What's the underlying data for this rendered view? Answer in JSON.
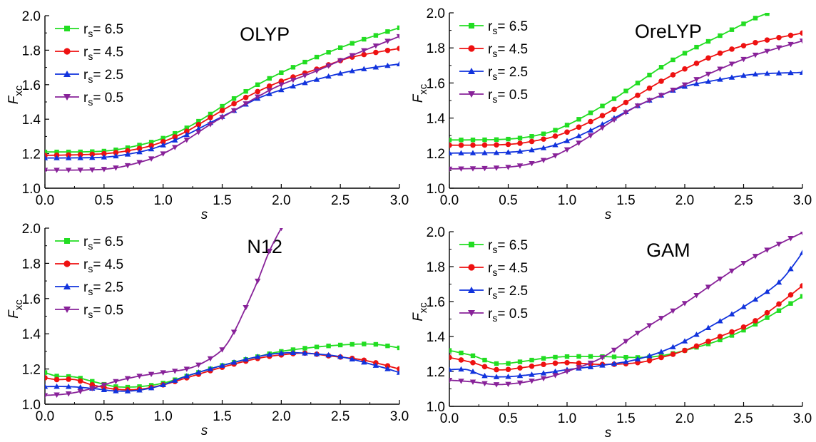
{
  "chart_data": [
    {
      "type": "line",
      "title": "OLYP",
      "xlabel": "s",
      "ylabel": "F",
      "ylabel_sub": "xc",
      "xlim": [
        0,
        3
      ],
      "ylim": [
        1.0,
        2.0
      ],
      "xticks": [
        "0.0",
        "0.5",
        "1.0",
        "1.5",
        "2.0",
        "2.5",
        "3.0"
      ],
      "yticks": [
        "1.0",
        "1.2",
        "1.4",
        "1.6",
        "1.8",
        "2.0"
      ],
      "legend": "top-left",
      "series": [
        {
          "name": "6.5",
          "color": "#22dd22",
          "marker": "square",
          "points": [
            [
              0,
              1.21
            ],
            [
              0.5,
              1.215
            ],
            [
              0.8,
              1.25
            ],
            [
              1.0,
              1.29
            ],
            [
              1.2,
              1.35
            ],
            [
              1.4,
              1.43
            ],
            [
              1.6,
              1.52
            ],
            [
              1.8,
              1.6
            ],
            [
              2.0,
              1.67
            ],
            [
              2.3,
              1.76
            ],
            [
              2.6,
              1.84
            ],
            [
              3.0,
              1.93
            ]
          ]
        },
        {
          "name": "4.5",
          "color": "#ee1111",
          "marker": "circle",
          "points": [
            [
              0,
              1.19
            ],
            [
              0.5,
              1.2
            ],
            [
              0.8,
              1.23
            ],
            [
              1.0,
              1.27
            ],
            [
              1.2,
              1.33
            ],
            [
              1.4,
              1.41
            ],
            [
              1.6,
              1.49
            ],
            [
              1.8,
              1.56
            ],
            [
              2.0,
              1.62
            ],
            [
              2.3,
              1.69
            ],
            [
              2.6,
              1.76
            ],
            [
              3.0,
              1.81
            ]
          ]
        },
        {
          "name": "2.5",
          "color": "#1133dd",
          "marker": "triangle-up",
          "points": [
            [
              0,
              1.175
            ],
            [
              0.5,
              1.18
            ],
            [
              0.8,
              1.21
            ],
            [
              1.0,
              1.25
            ],
            [
              1.2,
              1.31
            ],
            [
              1.4,
              1.38
            ],
            [
              1.6,
              1.45
            ],
            [
              1.8,
              1.52
            ],
            [
              2.0,
              1.57
            ],
            [
              2.3,
              1.63
            ],
            [
              2.6,
              1.68
            ],
            [
              3.0,
              1.72
            ]
          ]
        },
        {
          "name": "0.5",
          "color": "#882299",
          "marker": "triangle-down",
          "points": [
            [
              0,
              1.105
            ],
            [
              0.5,
              1.11
            ],
            [
              0.8,
              1.15
            ],
            [
              1.0,
              1.2
            ],
            [
              1.2,
              1.28
            ],
            [
              1.4,
              1.37
            ],
            [
              1.6,
              1.45
            ],
            [
              1.8,
              1.53
            ],
            [
              2.0,
              1.6
            ],
            [
              2.3,
              1.68
            ],
            [
              2.6,
              1.77
            ],
            [
              3.0,
              1.88
            ]
          ]
        }
      ]
    },
    {
      "type": "line",
      "title": "OreLYP",
      "xlabel": "s",
      "ylabel": "F",
      "ylabel_sub": "xc",
      "xlim": [
        0,
        3
      ],
      "ylim": [
        1.0,
        2.0
      ],
      "xticks": [
        "0.0",
        "0.5",
        "1.0",
        "1.5",
        "2.0",
        "2.5",
        "3.0"
      ],
      "yticks": [
        "1.0",
        "1.2",
        "1.4",
        "1.6",
        "1.8",
        "2.0"
      ],
      "legend": "top-left",
      "series": [
        {
          "name": "6.5",
          "color": "#22dd22",
          "marker": "square",
          "points": [
            [
              0,
              1.275
            ],
            [
              0.5,
              1.28
            ],
            [
              0.8,
              1.31
            ],
            [
              1.0,
              1.36
            ],
            [
              1.2,
              1.43
            ],
            [
              1.4,
              1.51
            ],
            [
              1.6,
              1.6
            ],
            [
              1.8,
              1.69
            ],
            [
              2.0,
              1.77
            ],
            [
              2.3,
              1.87
            ],
            [
              2.6,
              1.97
            ],
            [
              2.72,
              2.0
            ]
          ]
        },
        {
          "name": "4.5",
          "color": "#ee1111",
          "marker": "circle",
          "points": [
            [
              0,
              1.245
            ],
            [
              0.5,
              1.25
            ],
            [
              0.8,
              1.28
            ],
            [
              1.0,
              1.32
            ],
            [
              1.2,
              1.38
            ],
            [
              1.4,
              1.45
            ],
            [
              1.6,
              1.53
            ],
            [
              1.8,
              1.61
            ],
            [
              2.0,
              1.68
            ],
            [
              2.3,
              1.77
            ],
            [
              2.6,
              1.83
            ],
            [
              3.0,
              1.885
            ]
          ]
        },
        {
          "name": "2.5",
          "color": "#1133dd",
          "marker": "triangle-up",
          "points": [
            [
              0,
              1.2
            ],
            [
              0.5,
              1.205
            ],
            [
              0.8,
              1.23
            ],
            [
              1.0,
              1.27
            ],
            [
              1.2,
              1.33
            ],
            [
              1.4,
              1.4
            ],
            [
              1.6,
              1.47
            ],
            [
              1.8,
              1.53
            ],
            [
              2.0,
              1.58
            ],
            [
              2.3,
              1.62
            ],
            [
              2.6,
              1.65
            ],
            [
              3.0,
              1.66
            ]
          ]
        },
        {
          "name": "0.5",
          "color": "#882299",
          "marker": "triangle-down",
          "points": [
            [
              0,
              1.11
            ],
            [
              0.5,
              1.12
            ],
            [
              0.8,
              1.16
            ],
            [
              1.0,
              1.22
            ],
            [
              1.2,
              1.3
            ],
            [
              1.4,
              1.39
            ],
            [
              1.6,
              1.47
            ],
            [
              1.8,
              1.53
            ],
            [
              2.0,
              1.59
            ],
            [
              2.3,
              1.68
            ],
            [
              2.6,
              1.76
            ],
            [
              3.0,
              1.84
            ]
          ]
        }
      ]
    },
    {
      "type": "line",
      "title": "N12",
      "xlabel": "s",
      "ylabel": "F",
      "ylabel_sub": "xc",
      "xlim": [
        0,
        3
      ],
      "ylim": [
        1.0,
        2.0
      ],
      "xticks": [
        "0.0",
        "0.5",
        "1.0",
        "1.5",
        "2.0",
        "2.5",
        "3.0"
      ],
      "yticks": [
        "1.0",
        "1.2",
        "1.4",
        "1.6",
        "1.8",
        "2.0"
      ],
      "legend": "top-left",
      "series": [
        {
          "name": "6.5",
          "color": "#22dd22",
          "marker": "square",
          "points": [
            [
              0,
              1.18
            ],
            [
              0.1,
              1.16
            ],
            [
              0.25,
              1.155
            ],
            [
              0.4,
              1.13
            ],
            [
              0.6,
              1.1
            ],
            [
              0.8,
              1.1
            ],
            [
              1.0,
              1.12
            ],
            [
              1.2,
              1.16
            ],
            [
              1.5,
              1.22
            ],
            [
              1.8,
              1.27
            ],
            [
              2.0,
              1.3
            ],
            [
              2.3,
              1.325
            ],
            [
              2.6,
              1.34
            ],
            [
              2.8,
              1.34
            ],
            [
              3.0,
              1.32
            ]
          ]
        },
        {
          "name": "4.5",
          "color": "#ee1111",
          "marker": "circle",
          "points": [
            [
              0,
              1.15
            ],
            [
              0.1,
              1.14
            ],
            [
              0.25,
              1.14
            ],
            [
              0.4,
              1.11
            ],
            [
              0.6,
              1.085
            ],
            [
              0.8,
              1.085
            ],
            [
              1.0,
              1.11
            ],
            [
              1.2,
              1.15
            ],
            [
              1.5,
              1.21
            ],
            [
              1.8,
              1.26
            ],
            [
              2.0,
              1.28
            ],
            [
              2.2,
              1.29
            ],
            [
              2.4,
              1.275
            ],
            [
              2.7,
              1.25
            ],
            [
              3.0,
              1.2
            ]
          ]
        },
        {
          "name": "2.5",
          "color": "#1133dd",
          "marker": "triangle-up",
          "points": [
            [
              0,
              1.1
            ],
            [
              0.2,
              1.1
            ],
            [
              0.4,
              1.09
            ],
            [
              0.6,
              1.075
            ],
            [
              0.8,
              1.08
            ],
            [
              1.0,
              1.11
            ],
            [
              1.2,
              1.16
            ],
            [
              1.5,
              1.22
            ],
            [
              1.8,
              1.27
            ],
            [
              2.0,
              1.29
            ],
            [
              2.2,
              1.29
            ],
            [
              2.5,
              1.27
            ],
            [
              2.8,
              1.22
            ],
            [
              3.0,
              1.18
            ]
          ]
        },
        {
          "name": "0.5",
          "color": "#882299",
          "marker": "triangle-down",
          "points": [
            [
              0,
              1.05
            ],
            [
              0.2,
              1.06
            ],
            [
              0.4,
              1.09
            ],
            [
              0.6,
              1.13
            ],
            [
              0.8,
              1.16
            ],
            [
              1.0,
              1.18
            ],
            [
              1.2,
              1.2
            ],
            [
              1.35,
              1.24
            ],
            [
              1.5,
              1.31
            ],
            [
              1.6,
              1.41
            ],
            [
              1.7,
              1.55
            ],
            [
              1.8,
              1.7
            ],
            [
              1.9,
              1.87
            ],
            [
              2.0,
              2.0
            ]
          ]
        }
      ]
    },
    {
      "type": "line",
      "title": "GAM",
      "xlabel": "s",
      "ylabel": "F",
      "ylabel_sub": "xc",
      "xlim": [
        0,
        3
      ],
      "ylim": [
        1.0,
        2.0
      ],
      "xticks": [
        "0.0",
        "0.5",
        "1.0",
        "1.5",
        "2.0",
        "2.5",
        "3.0"
      ],
      "yticks": [
        "1.0",
        "1.2",
        "1.4",
        "1.6",
        "1.8",
        "2.0"
      ],
      "legend": "top-left",
      "series": [
        {
          "name": "6.5",
          "color": "#22dd22",
          "marker": "square",
          "points": [
            [
              0,
              1.32
            ],
            [
              0.2,
              1.29
            ],
            [
              0.4,
              1.245
            ],
            [
              0.6,
              1.255
            ],
            [
              0.8,
              1.275
            ],
            [
              1.0,
              1.285
            ],
            [
              1.3,
              1.285
            ],
            [
              1.6,
              1.28
            ],
            [
              1.8,
              1.29
            ],
            [
              2.0,
              1.32
            ],
            [
              2.3,
              1.38
            ],
            [
              2.6,
              1.47
            ],
            [
              3.0,
              1.63
            ]
          ]
        },
        {
          "name": "4.5",
          "color": "#ee1111",
          "marker": "circle",
          "points": [
            [
              0,
              1.28
            ],
            [
              0.2,
              1.25
            ],
            [
              0.4,
              1.21
            ],
            [
              0.6,
              1.22
            ],
            [
              0.8,
              1.24
            ],
            [
              1.0,
              1.25
            ],
            [
              1.3,
              1.24
            ],
            [
              1.6,
              1.25
            ],
            [
              1.8,
              1.28
            ],
            [
              2.0,
              1.32
            ],
            [
              2.3,
              1.4
            ],
            [
              2.6,
              1.49
            ],
            [
              3.0,
              1.69
            ]
          ]
        },
        {
          "name": "2.5",
          "color": "#1133dd",
          "marker": "triangle-up",
          "points": [
            [
              0,
              1.21
            ],
            [
              0.15,
              1.21
            ],
            [
              0.3,
              1.175
            ],
            [
              0.5,
              1.17
            ],
            [
              0.8,
              1.19
            ],
            [
              1.0,
              1.21
            ],
            [
              1.3,
              1.235
            ],
            [
              1.6,
              1.27
            ],
            [
              1.9,
              1.34
            ],
            [
              2.2,
              1.45
            ],
            [
              2.5,
              1.57
            ],
            [
              2.8,
              1.71
            ],
            [
              3.0,
              1.88
            ]
          ]
        },
        {
          "name": "0.5",
          "color": "#882299",
          "marker": "triangle-down",
          "points": [
            [
              0,
              1.15
            ],
            [
              0.2,
              1.14
            ],
            [
              0.4,
              1.125
            ],
            [
              0.6,
              1.135
            ],
            [
              0.8,
              1.16
            ],
            [
              1.0,
              1.2
            ],
            [
              1.3,
              1.28
            ],
            [
              1.6,
              1.42
            ],
            [
              2.0,
              1.59
            ],
            [
              2.3,
              1.73
            ],
            [
              2.6,
              1.86
            ],
            [
              3.0,
              1.995
            ]
          ]
        }
      ]
    }
  ]
}
